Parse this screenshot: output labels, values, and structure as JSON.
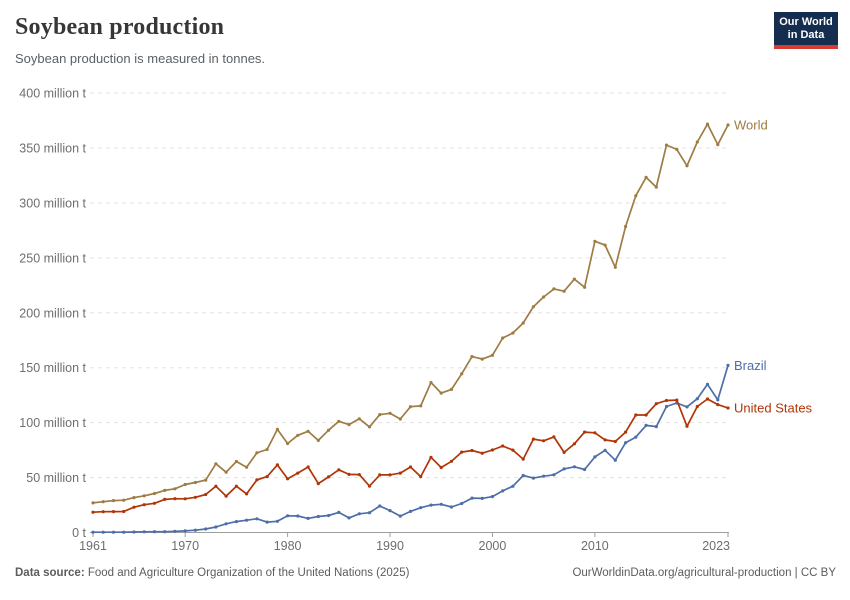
{
  "header": {
    "title": "Soybean production",
    "subtitle": "Soybean production is measured in tonnes."
  },
  "logo": {
    "line1": "Our World",
    "line2": "in Data",
    "bg_color": "#152d4f",
    "accent_color": "#d73c34"
  },
  "chart_data": {
    "type": "line",
    "title": "Soybean production",
    "unit": "tonnes",
    "xlabel": "",
    "ylabel": "",
    "ylim": [
      0,
      400
    ],
    "xlim": [
      1961,
      2023
    ],
    "grid": "horizontal-dashed",
    "legend_position": "end-of-line",
    "yticks": [
      0,
      50,
      100,
      150,
      200,
      250,
      300,
      350,
      400
    ],
    "ytick_labels": [
      "0 t",
      "50 million t",
      "100 million t",
      "150 million t",
      "200 million t",
      "250 million t",
      "300 million t",
      "350 million t",
      "400 million t"
    ],
    "xticks": [
      1961,
      1970,
      1980,
      1990,
      2000,
      2010,
      2023
    ],
    "years": [
      1961,
      1962,
      1963,
      1964,
      1965,
      1966,
      1967,
      1968,
      1969,
      1970,
      1971,
      1972,
      1973,
      1974,
      1975,
      1976,
      1977,
      1978,
      1979,
      1980,
      1981,
      1982,
      1983,
      1984,
      1985,
      1986,
      1987,
      1988,
      1989,
      1990,
      1991,
      1992,
      1993,
      1994,
      1995,
      1996,
      1997,
      1998,
      1999,
      2000,
      2001,
      2002,
      2003,
      2004,
      2005,
      2006,
      2007,
      2008,
      2009,
      2010,
      2011,
      2012,
      2013,
      2014,
      2015,
      2016,
      2017,
      2018,
      2019,
      2020,
      2021,
      2022,
      2023
    ],
    "series": [
      {
        "name": "World",
        "color": "#9e7c44",
        "values": [
          26.9,
          28.0,
          29.0,
          29.4,
          31.8,
          33.4,
          35.5,
          38.3,
          39.8,
          43.7,
          45.5,
          47.7,
          62.5,
          54.9,
          64.6,
          59.4,
          72.5,
          75.5,
          93.8,
          81.0,
          88.5,
          92.1,
          83.8,
          93.1,
          101.2,
          98.2,
          103.5,
          96.1,
          107.3,
          108.5,
          103.3,
          114.5,
          115.2,
          136.5,
          126.9,
          130.2,
          144.4,
          160.1,
          157.8,
          161.3,
          177.0,
          181.6,
          190.7,
          205.5,
          214.3,
          221.7,
          219.6,
          230.6,
          223.2,
          265.0,
          261.6,
          241.4,
          278.5,
          306.5,
          323.2,
          314.4,
          352.6,
          348.7,
          333.7,
          355.4,
          371.7,
          353.0,
          370.9
        ]
      },
      {
        "name": "Brazil",
        "color": "#4d6ea8",
        "values": [
          0.3,
          0.3,
          0.3,
          0.3,
          0.5,
          0.6,
          0.7,
          0.7,
          1.1,
          1.5,
          2.1,
          3.2,
          5.0,
          7.9,
          9.9,
          11.2,
          12.5,
          9.5,
          10.2,
          15.2,
          15.0,
          12.8,
          14.6,
          15.5,
          18.3,
          13.3,
          17.0,
          18.0,
          24.1,
          19.9,
          14.9,
          19.2,
          22.6,
          24.9,
          25.7,
          23.2,
          26.4,
          31.3,
          31.0,
          32.7,
          37.9,
          42.1,
          51.9,
          49.5,
          51.2,
          52.5,
          57.9,
          59.8,
          57.3,
          68.8,
          74.8,
          65.8,
          81.7,
          86.8,
          97.5,
          96.4,
          114.7,
          117.9,
          114.3,
          121.8,
          134.9,
          120.7,
          152.1
        ]
      },
      {
        "name": "United States",
        "color": "#b13507",
        "values": [
          18.5,
          18.9,
          19.0,
          19.1,
          23.0,
          25.3,
          26.6,
          30.1,
          30.8,
          30.7,
          32.0,
          34.6,
          42.1,
          33.1,
          42.1,
          35.1,
          47.9,
          50.9,
          61.5,
          48.9,
          54.1,
          59.6,
          44.5,
          50.6,
          57.1,
          52.9,
          52.7,
          42.2,
          52.4,
          52.4,
          54.1,
          59.6,
          50.9,
          68.4,
          59.2,
          64.8,
          73.2,
          74.6,
          72.2,
          75.1,
          78.7,
          75.0,
          66.8,
          85.0,
          83.5,
          87.0,
          72.9,
          80.7,
          91.4,
          90.7,
          84.3,
          82.8,
          91.4,
          106.9,
          106.9,
          117.2,
          120.1,
          120.5,
          96.7,
          114.7,
          121.5,
          116.4,
          113.3
        ]
      }
    ],
    "style": {
      "grid_color": "#e3e3e3",
      "axis_color": "#9e9e9e",
      "tick_label_color": "#6e6e6e",
      "line_width": 1.7,
      "marker_radius": 1.6
    }
  },
  "footer": {
    "source_label": "Data source:",
    "source_text": " Food and Agriculture Organization of the United Nations (2025)",
    "attribution": "OurWorldinData.org/agricultural-production | CC BY"
  }
}
